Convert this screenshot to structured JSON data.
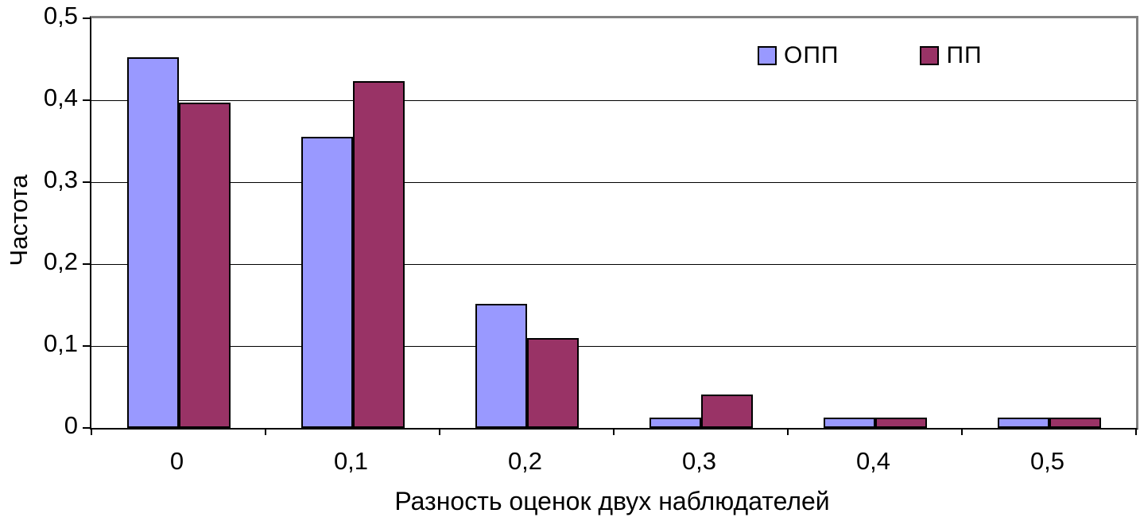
{
  "chart_data": {
    "type": "bar",
    "title": "",
    "xlabel": "Разность оценок двух наблюдателей",
    "ylabel": "Частота",
    "categories": [
      "0",
      "0,1",
      "0,2",
      "0,3",
      "0,4",
      "0,5"
    ],
    "series": [
      {
        "name": "ОПП",
        "color": "#9999FF",
        "values": [
          0.452,
          0.355,
          0.151,
          0.013,
          0.013,
          0.013
        ]
      },
      {
        "name": "ПП",
        "color": "#993366",
        "values": [
          0.397,
          0.423,
          0.11,
          0.041,
          0.013,
          0.013
        ]
      }
    ],
    "ylim": [
      0,
      0.5
    ],
    "ytick_step": 0.1,
    "ytick_labels": [
      "0",
      "0,1",
      "0,2",
      "0,3",
      "0,4",
      "0,5"
    ],
    "grid": true,
    "legend_position": "top-right",
    "bar_border_color": "#000000",
    "plot_border_color": "#808080",
    "gridline_color": "#000000"
  }
}
